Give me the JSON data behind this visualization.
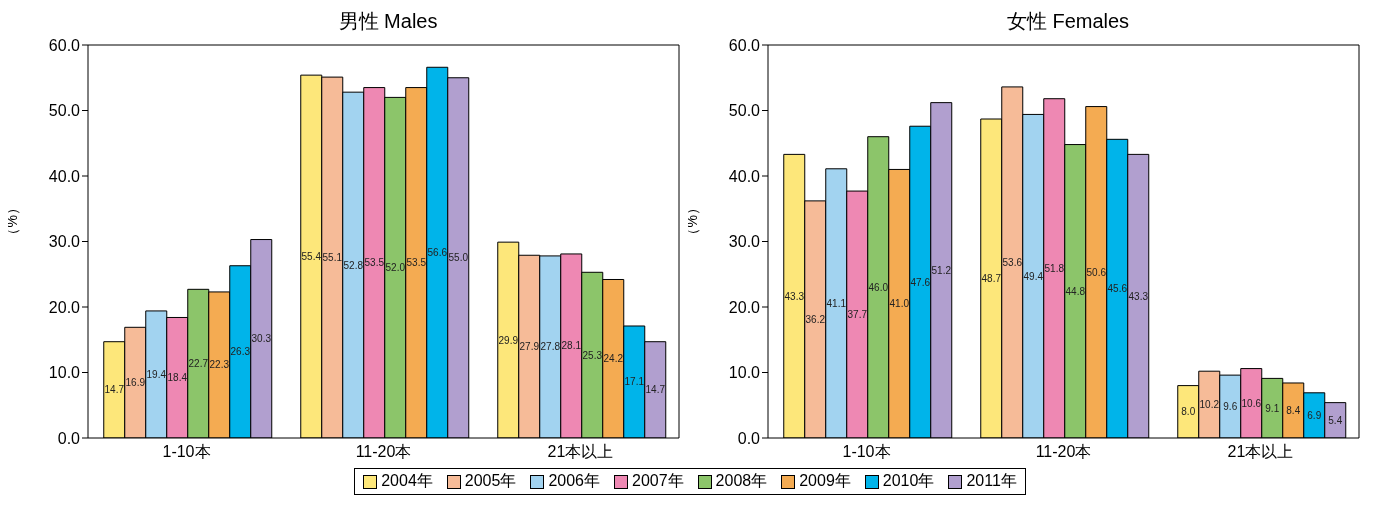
{
  "chart_data": [
    {
      "type": "bar",
      "title": "男性  Males",
      "ylabel": "（%）",
      "categories": [
        "1-10本",
        "11-20本",
        "21本以上"
      ],
      "ylim": [
        0,
        60
      ],
      "yticks": [
        {
          "value": 0,
          "label": "0.0"
        },
        {
          "value": 10,
          "label": "10.0"
        },
        {
          "value": 20,
          "label": "20.0"
        },
        {
          "value": 30,
          "label": "30.0"
        },
        {
          "value": 40,
          "label": "40.0"
        },
        {
          "value": 50,
          "label": "50.0"
        },
        {
          "value": 60,
          "label": "60.0"
        }
      ],
      "legend": "bottom",
      "series": [
        {
          "name": "2004年",
          "color": "#fde77a",
          "values": [
            14.7,
            55.4,
            29.9
          ],
          "value_labels": [
            "14.7",
            "55.4",
            "29.9"
          ]
        },
        {
          "name": "2005年",
          "color": "#f6bb98",
          "values": [
            16.9,
            55.1,
            27.9
          ],
          "value_labels": [
            "16.9",
            "55.1",
            "27.9"
          ]
        },
        {
          "name": "2006年",
          "color": "#a2d3f0",
          "values": [
            19.4,
            52.8,
            27.8
          ],
          "value_labels": [
            "19.4",
            "52.8",
            "27.8"
          ]
        },
        {
          "name": "2007年",
          "color": "#ee88b3",
          "values": [
            18.4,
            53.5,
            28.1
          ],
          "value_labels": [
            "18.4",
            "53.5",
            "28.1"
          ]
        },
        {
          "name": "2008年",
          "color": "#8cc56a",
          "values": [
            22.7,
            52.0,
            25.3
          ],
          "value_labels": [
            "22.7",
            "52.0",
            "25.3"
          ]
        },
        {
          "name": "2009年",
          "color": "#f4ab52",
          "values": [
            22.3,
            53.5,
            24.2
          ],
          "value_labels": [
            "22.3",
            "53.5",
            "24.2"
          ]
        },
        {
          "name": "2010年",
          "color": "#00b4ea",
          "values": [
            26.3,
            56.6,
            17.1
          ],
          "value_labels": [
            "26.3",
            "56.6",
            "17.1"
          ]
        },
        {
          "name": "2011年",
          "color": "#b19fcf",
          "values": [
            30.3,
            55.0,
            14.7
          ],
          "value_labels": [
            "30.3",
            "55.0",
            "14.7"
          ]
        }
      ]
    },
    {
      "type": "bar",
      "title": "女性  Females",
      "ylabel": "（%）",
      "categories": [
        "1-10本",
        "11-20本",
        "21本以上"
      ],
      "ylim": [
        0,
        60
      ],
      "yticks": [
        {
          "value": 0,
          "label": "0.0"
        },
        {
          "value": 10,
          "label": "10.0"
        },
        {
          "value": 20,
          "label": "20.0"
        },
        {
          "value": 30,
          "label": "30.0"
        },
        {
          "value": 40,
          "label": "40.0"
        },
        {
          "value": 50,
          "label": "50.0"
        },
        {
          "value": 60,
          "label": "60.0"
        }
      ],
      "legend": "bottom",
      "series": [
        {
          "name": "2004年",
          "color": "#fde77a",
          "values": [
            43.3,
            48.7,
            8.0
          ],
          "value_labels": [
            "43.3",
            "48.7",
            "8.0"
          ]
        },
        {
          "name": "2005年",
          "color": "#f6bb98",
          "values": [
            36.2,
            53.6,
            10.2
          ],
          "value_labels": [
            "36.2",
            "53.6",
            "10.2"
          ]
        },
        {
          "name": "2006年",
          "color": "#a2d3f0",
          "values": [
            41.1,
            49.4,
            9.6
          ],
          "value_labels": [
            "41.1",
            "49.4",
            "9.6"
          ]
        },
        {
          "name": "2007年",
          "color": "#ee88b3",
          "values": [
            37.7,
            51.8,
            10.6
          ],
          "value_labels": [
            "37.7",
            "51.8",
            "10.6"
          ]
        },
        {
          "name": "2008年",
          "color": "#8cc56a",
          "values": [
            46.0,
            44.8,
            9.1
          ],
          "value_labels": [
            "46.0",
            "44.8",
            "9.1"
          ]
        },
        {
          "name": "2009年",
          "color": "#f4ab52",
          "values": [
            41.0,
            50.6,
            8.4
          ],
          "value_labels": [
            "41.0",
            "50.6",
            "8.4"
          ]
        },
        {
          "name": "2010年",
          "color": "#00b4ea",
          "values": [
            47.6,
            45.6,
            6.9
          ],
          "value_labels": [
            "47.6",
            "45.6",
            "6.9"
          ]
        },
        {
          "name": "2011年",
          "color": "#b19fcf",
          "values": [
            51.2,
            43.3,
            5.4
          ],
          "value_labels": [
            "51.2",
            "43.3",
            "5.4"
          ]
        }
      ]
    }
  ]
}
